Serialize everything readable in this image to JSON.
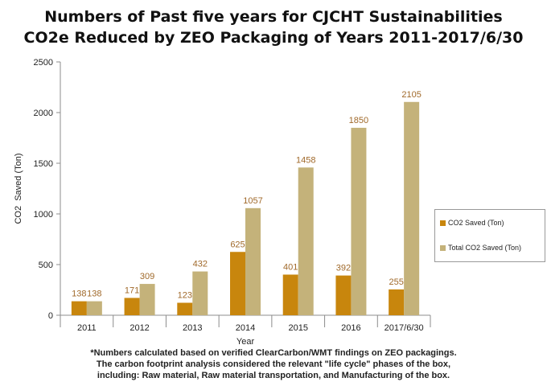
{
  "titles": {
    "line1": "Numbers of Past five years for CJCHT Sustainabilities",
    "line2": "CO2e Reduced by ZEO Packaging of Years 2011-2017/6/30"
  },
  "footnote": {
    "line1": "*Numbers calculated based on verified ClearCarbon/WMT findings on ZEO packagings.",
    "line2": "The carbon footprint analysis considered the relevant \"life cycle\" phases of the box,",
    "line3": "including: Raw material, Raw material transportation, and Manufacturing of the box."
  },
  "colors": {
    "co2_saved": "#c8860d",
    "total_co2_saved": "#c4b27a",
    "label_text": "#a0692a",
    "axis": "#8c8c8c",
    "grid": "#d9d9d9"
  },
  "chart_data": {
    "type": "bar",
    "title": "Numbers of Past five years for CJCHT Sustainabilities CO2e Reduced by ZEO Packaging of Years 2011-2017/6/30",
    "xlabel": "Year",
    "ylabel": "CO2  Saved (Ton)",
    "ylim": [
      0,
      2500
    ],
    "yticks": [
      0,
      500,
      1000,
      1500,
      2000,
      2500
    ],
    "grid": false,
    "legend_position": "right",
    "categories": [
      "2011",
      "2012",
      "2013",
      "2014",
      "2015",
      "2016",
      "2017/6/30"
    ],
    "series": [
      {
        "name": "CO2 Saved (Ton)",
        "values": [
          138,
          171,
          123,
          625,
          401,
          392,
          255
        ]
      },
      {
        "name": "Total CO2 Saved (Ton)",
        "values": [
          138,
          309,
          432,
          1057,
          1458,
          1850,
          2105
        ]
      }
    ]
  }
}
